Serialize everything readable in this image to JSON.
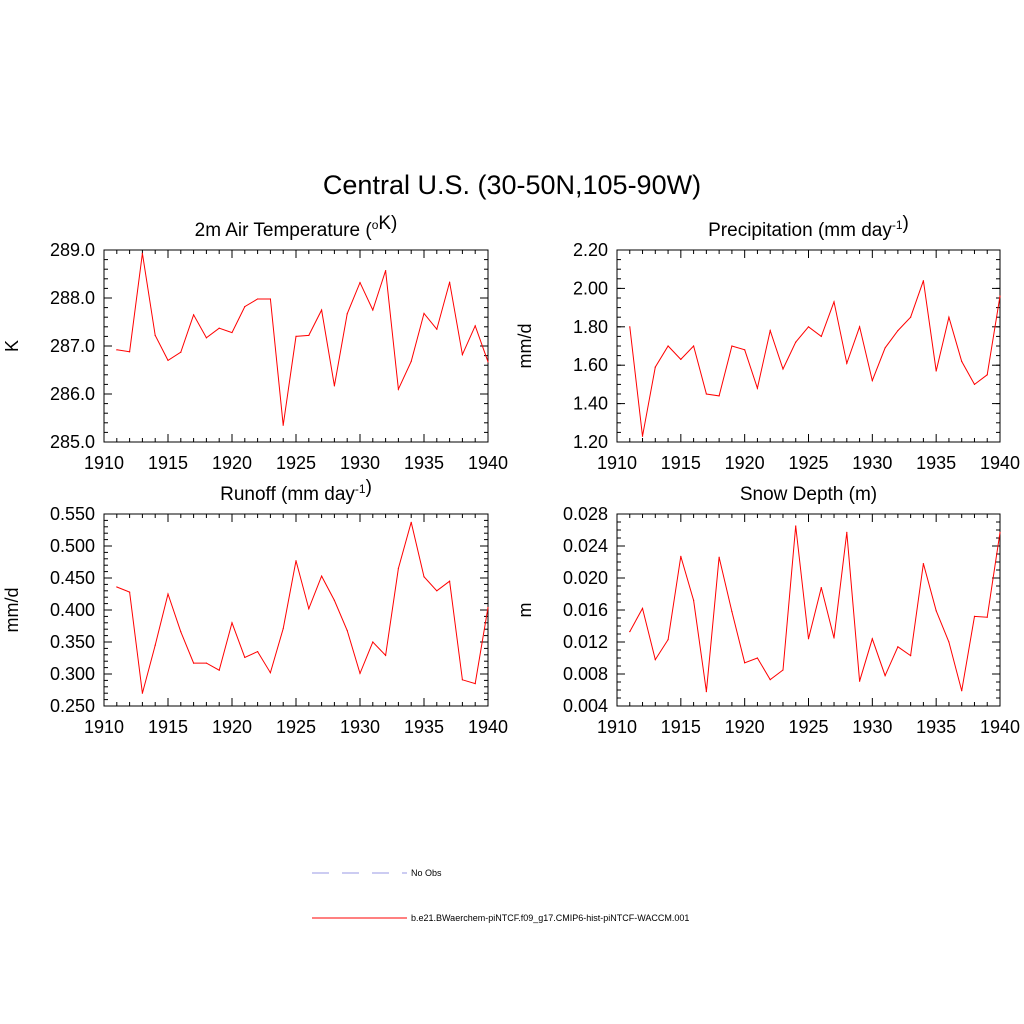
{
  "figure": {
    "title": "Central U.S. (30-50N,105-90W)"
  },
  "legend": [
    {
      "label": "No Obs",
      "color": "#9a9ae6",
      "style": "dashed"
    },
    {
      "label": "b.e21.BWaerchem-piNTCF.f09_g17.CMIP6-hist-piNTCF-WACCM.001",
      "color": "#ff0000",
      "style": "solid"
    }
  ],
  "chart_data": [
    {
      "type": "line",
      "title": "2m Air Temperature (<sup>o</sup>K)",
      "xlabel": "",
      "ylabel": "K",
      "xlim": [
        1910,
        1940
      ],
      "ylim": [
        285.0,
        289.0
      ],
      "xticks": [
        1910,
        1915,
        1920,
        1925,
        1930,
        1935,
        1940
      ],
      "yticks": [
        "285.0",
        "286.0",
        "287.0",
        "288.0",
        "289.0"
      ],
      "ytick_values": [
        285.0,
        286.0,
        287.0,
        288.0,
        289.0
      ],
      "yminor": 0.2,
      "x": [
        1911,
        1912,
        1913,
        1914,
        1915,
        1916,
        1917,
        1918,
        1919,
        1920,
        1921,
        1922,
        1923,
        1924,
        1925,
        1926,
        1927,
        1928,
        1929,
        1930,
        1931,
        1932,
        1933,
        1934,
        1935,
        1936,
        1937,
        1938,
        1939,
        1940
      ],
      "series": [
        {
          "color": "#ff0000",
          "values": [
            286.92,
            286.88,
            288.93,
            287.22,
            286.7,
            286.87,
            287.65,
            287.17,
            287.37,
            287.28,
            287.82,
            287.98,
            287.98,
            285.35,
            287.2,
            287.22,
            287.75,
            286.17,
            287.67,
            288.32,
            287.75,
            288.57,
            286.1,
            286.68,
            287.68,
            287.35,
            288.33,
            286.82,
            287.42,
            286.67
          ]
        }
      ]
    },
    {
      "type": "line",
      "title": "Precipitation (mm day<sup>-1</sup>)",
      "xlabel": "",
      "ylabel": "mm/d",
      "xlim": [
        1910,
        1940
      ],
      "ylim": [
        1.2,
        2.2
      ],
      "xticks": [
        1910,
        1915,
        1920,
        1925,
        1930,
        1935,
        1940
      ],
      "yticks": [
        "1.20",
        "1.40",
        "1.60",
        "1.80",
        "2.00",
        "2.20"
      ],
      "ytick_values": [
        1.2,
        1.4,
        1.6,
        1.8,
        2.0,
        2.2
      ],
      "yminor": 0.05,
      "x": [
        1911,
        1912,
        1913,
        1914,
        1915,
        1916,
        1917,
        1918,
        1919,
        1920,
        1921,
        1922,
        1923,
        1924,
        1925,
        1926,
        1927,
        1928,
        1929,
        1930,
        1931,
        1932,
        1933,
        1934,
        1935,
        1936,
        1937,
        1938,
        1939,
        1940
      ],
      "series": [
        {
          "color": "#ff0000",
          "values": [
            1.8,
            1.23,
            1.59,
            1.7,
            1.63,
            1.7,
            1.45,
            1.44,
            1.7,
            1.68,
            1.48,
            1.78,
            1.58,
            1.72,
            1.8,
            1.75,
            1.93,
            1.61,
            1.8,
            1.52,
            1.69,
            1.78,
            1.85,
            2.04,
            1.57,
            1.85,
            1.62,
            1.5,
            1.55,
            1.96
          ]
        }
      ]
    },
    {
      "type": "line",
      "title": "Runoff (mm day<sup>-1</sup>)",
      "xlabel": "",
      "ylabel": "mm/d",
      "xlim": [
        1910,
        1940
      ],
      "ylim": [
        0.25,
        0.55
      ],
      "xticks": [
        1910,
        1915,
        1920,
        1925,
        1930,
        1935,
        1940
      ],
      "yticks": [
        "0.250",
        "0.300",
        "0.350",
        "0.400",
        "0.450",
        "0.500",
        "0.550"
      ],
      "ytick_values": [
        0.25,
        0.3,
        0.35,
        0.4,
        0.45,
        0.5,
        0.55
      ],
      "yminor": 0.01,
      "x": [
        1911,
        1912,
        1913,
        1914,
        1915,
        1916,
        1917,
        1918,
        1919,
        1920,
        1921,
        1922,
        1923,
        1924,
        1925,
        1926,
        1927,
        1928,
        1929,
        1930,
        1931,
        1932,
        1933,
        1934,
        1935,
        1936,
        1937,
        1938,
        1939,
        1940
      ],
      "series": [
        {
          "color": "#ff0000",
          "values": [
            0.436,
            0.428,
            0.27,
            0.345,
            0.425,
            0.366,
            0.317,
            0.317,
            0.306,
            0.38,
            0.326,
            0.335,
            0.302,
            0.371,
            0.477,
            0.402,
            0.453,
            0.415,
            0.368,
            0.301,
            0.35,
            0.329,
            0.465,
            0.537,
            0.452,
            0.43,
            0.445,
            0.291,
            0.285,
            0.404
          ]
        }
      ]
    },
    {
      "type": "line",
      "title": "Snow Depth (m)",
      "xlabel": "",
      "ylabel": "m",
      "xlim": [
        1910,
        1940
      ],
      "ylim": [
        0.004,
        0.028
      ],
      "xticks": [
        1910,
        1915,
        1920,
        1925,
        1930,
        1935,
        1940
      ],
      "yticks": [
        "0.004",
        "0.008",
        "0.012",
        "0.016",
        "0.020",
        "0.024",
        "0.028"
      ],
      "ytick_values": [
        0.004,
        0.008,
        0.012,
        0.016,
        0.02,
        0.024,
        0.028
      ],
      "yminor": 0.001,
      "x": [
        1911,
        1912,
        1913,
        1914,
        1915,
        1916,
        1917,
        1918,
        1919,
        1920,
        1921,
        1922,
        1923,
        1924,
        1925,
        1926,
        1927,
        1928,
        1929,
        1930,
        1931,
        1932,
        1933,
        1934,
        1935,
        1936,
        1937,
        1938,
        1939,
        1940
      ],
      "series": [
        {
          "color": "#ff0000",
          "values": [
            0.0133,
            0.0162,
            0.0098,
            0.0123,
            0.0227,
            0.0172,
            0.0058,
            0.0226,
            0.0158,
            0.0094,
            0.01,
            0.0073,
            0.0085,
            0.0265,
            0.0124,
            0.0188,
            0.0125,
            0.0257,
            0.0071,
            0.0124,
            0.0078,
            0.0114,
            0.0103,
            0.0218,
            0.0159,
            0.012,
            0.0059,
            0.0152,
            0.0151,
            0.0257
          ]
        }
      ]
    }
  ]
}
